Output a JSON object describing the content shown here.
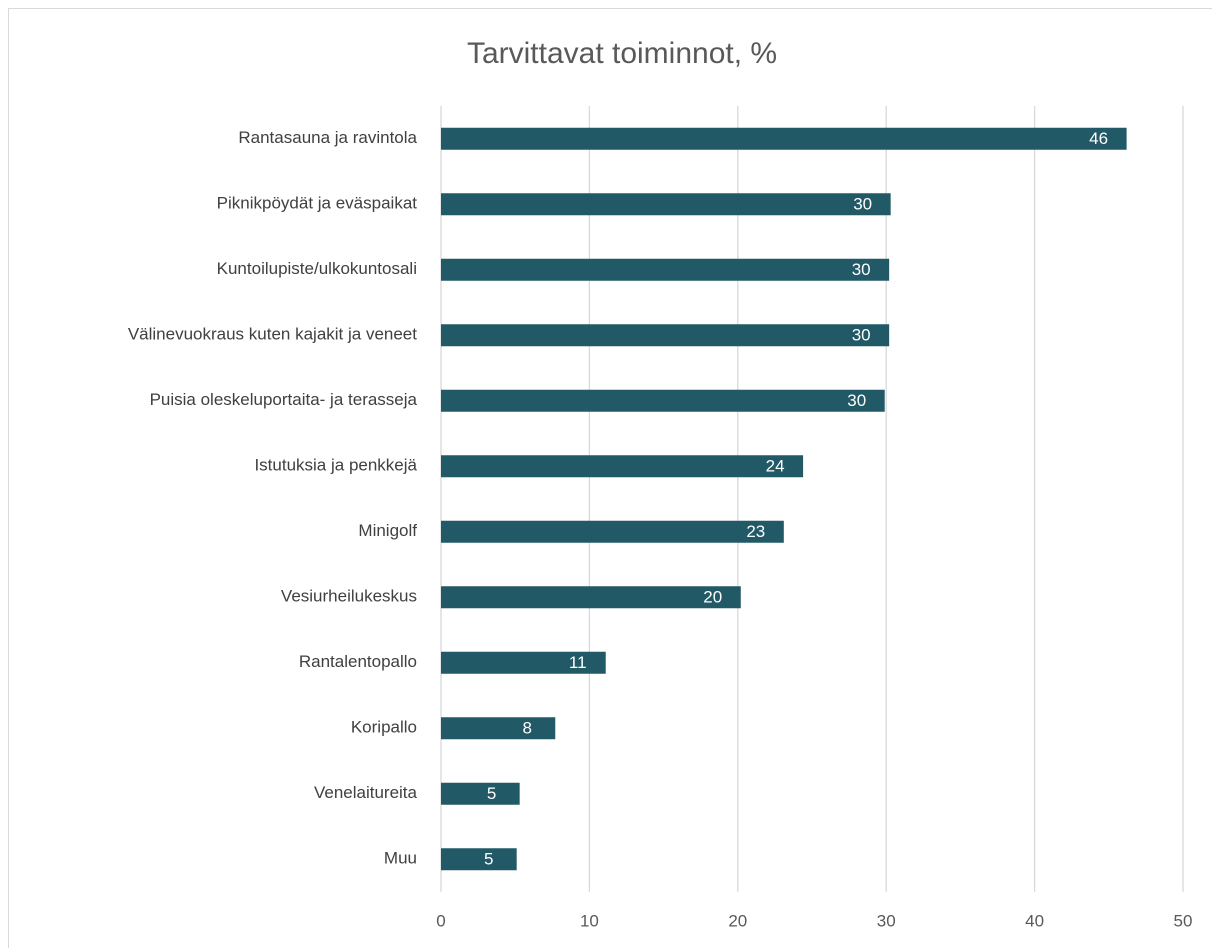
{
  "chart_data": {
    "type": "bar",
    "orientation": "horizontal",
    "title": "Tarvittavat toiminnot, %",
    "categories": [
      "Rantasauna ja ravintola",
      "Piknikpöydät ja eväspaikat",
      "Kuntoilupiste/ulkokuntosali",
      "Välinevuokraus kuten kajakit ja veneet",
      "Puisia oleskeluportaita- ja terasseja",
      "Istutuksia ja penkkejä",
      "Minigolf",
      "Vesiurheilukeskus",
      "Rantalentopallo",
      "Koripallo",
      "Venelaitureita",
      "Muu"
    ],
    "values": [
      46.2,
      30.3,
      30.2,
      30.2,
      29.9,
      24.4,
      23.1,
      20.2,
      11.1,
      7.7,
      5.3,
      5.1
    ],
    "value_labels": [
      "46",
      "30",
      "30",
      "30",
      "30",
      "24",
      "23",
      "20",
      "11",
      "8",
      "5",
      "5"
    ],
    "color": "#215967",
    "xlim": [
      0,
      50
    ],
    "xticks": [
      0,
      10,
      20,
      30,
      40,
      50
    ],
    "grid": true
  }
}
